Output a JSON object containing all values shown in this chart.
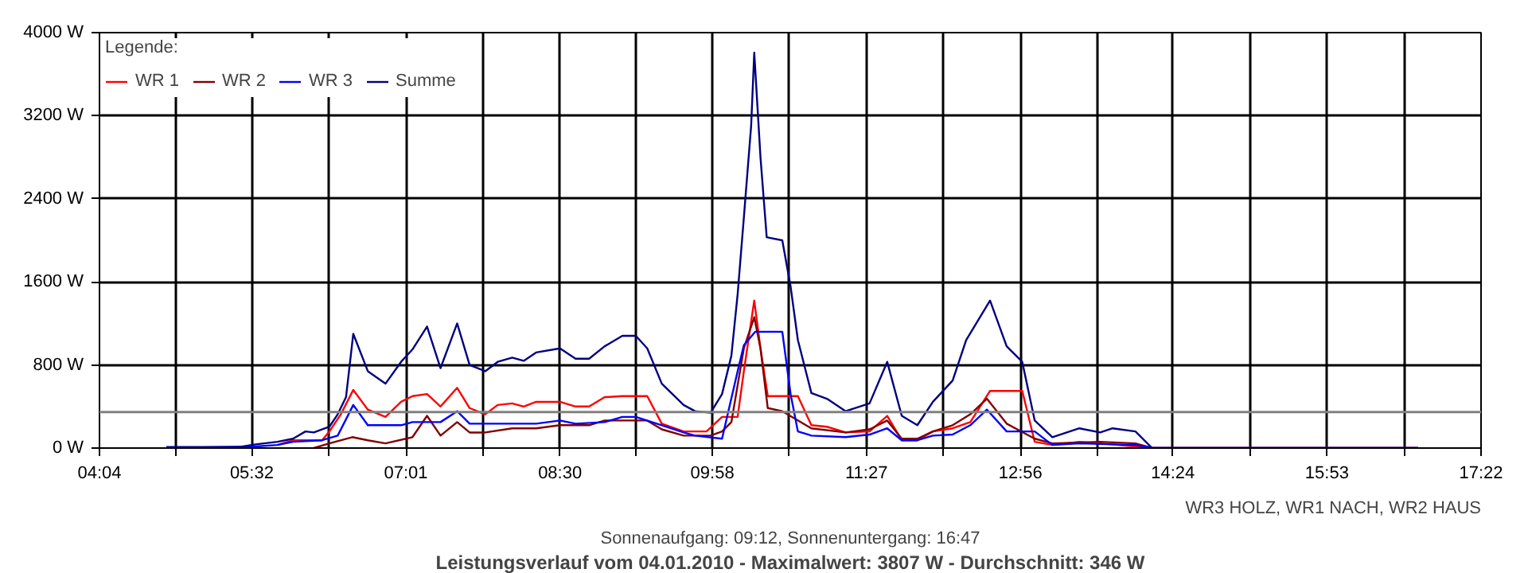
{
  "chart_data": {
    "type": "line",
    "title": "Leistungsverlauf vom 04.01.2010 - Maximalwert: 3807 W - Durchschnitt: 346 W",
    "subtitle": "Sonnenaufgang: 09:12, Sonnenuntergang: 16:47",
    "legend_title": "Legende:",
    "annotations": [
      "WR3 HOLZ, WR1 NACH, WR2 HAUS"
    ],
    "xlim": [
      4.0667,
      17.3667
    ],
    "xticks": [
      {
        "value": 4.0667,
        "label": "04:04"
      },
      {
        "value": 4.8,
        "label": null
      },
      {
        "value": 5.5333,
        "label": "05:32"
      },
      {
        "value": 6.275,
        "label": null
      },
      {
        "value": 7.0167,
        "label": "07:01"
      },
      {
        "value": 7.7583,
        "label": null
      },
      {
        "value": 8.5,
        "label": "08:30"
      },
      {
        "value": 9.2333,
        "label": null
      },
      {
        "value": 9.9667,
        "label": "09:58"
      },
      {
        "value": 10.7083,
        "label": null
      },
      {
        "value": 11.45,
        "label": "11:27"
      },
      {
        "value": 12.1917,
        "label": null
      },
      {
        "value": 12.9333,
        "label": "12:56"
      },
      {
        "value": 13.6667,
        "label": null
      },
      {
        "value": 14.4,
        "label": "14:24"
      },
      {
        "value": 15.1417,
        "label": null
      },
      {
        "value": 15.8833,
        "label": "15:53"
      },
      {
        "value": 16.625,
        "label": null
      },
      {
        "value": 17.3667,
        "label": "17:22"
      }
    ],
    "ylim": [
      0,
      4000
    ],
    "yticks": [
      {
        "value": 0,
        "label": "0 W"
      },
      {
        "value": 800,
        "label": "800 W"
      },
      {
        "value": 1600,
        "label": "1600 W"
      },
      {
        "value": 2400,
        "label": "2400 W"
      },
      {
        "value": 3200,
        "label": "3200 W"
      },
      {
        "value": 4000,
        "label": "4000 W"
      }
    ],
    "grid": true,
    "legend": "top left",
    "line_style": "solid",
    "ref_lines": [
      {
        "axis": "y",
        "value": 346,
        "label": null,
        "color": "#808080"
      }
    ],
    "series": [
      {
        "name": "WR 1",
        "color": "#ff0000",
        "x": [
          5.78,
          5.93,
          6.21,
          6.28,
          6.39,
          6.51,
          6.65,
          6.82,
          6.97,
          7.08,
          7.22,
          7.35,
          7.51,
          7.63,
          7.78,
          7.9,
          8.04,
          8.15,
          8.27,
          8.5,
          8.65,
          8.78,
          8.93,
          9.1,
          9.34,
          9.48,
          9.69,
          9.91,
          10.06,
          10.21,
          10.27,
          10.37,
          10.43,
          10.5,
          10.79,
          10.92,
          11.07,
          11.25,
          11.48,
          11.65,
          11.79,
          11.94,
          12.09,
          12.28,
          12.45,
          12.64,
          12.95,
          13.07,
          13.24,
          13.5,
          13.7,
          14.2,
          16.76
        ],
        "values": [
          30,
          75,
          75,
          160,
          325,
          560,
          370,
          300,
          445,
          500,
          520,
          400,
          580,
          385,
          325,
          415,
          430,
          400,
          445,
          445,
          400,
          400,
          490,
          500,
          500,
          235,
          160,
          160,
          300,
          300,
          740,
          1420,
          960,
          500,
          500,
          220,
          205,
          150,
          160,
          310,
          75,
          75,
          160,
          190,
          250,
          550,
          550,
          60,
          30,
          60,
          45,
          0,
          0
        ]
      },
      {
        "name": "WR 2",
        "color": "#800000",
        "x": [
          6.13,
          6.28,
          6.5,
          6.65,
          6.82,
          7.08,
          7.22,
          7.35,
          7.51,
          7.63,
          7.78,
          8.04,
          8.27,
          8.5,
          8.78,
          8.93,
          9.34,
          9.48,
          9.69,
          9.95,
          10.06,
          10.15,
          10.27,
          10.37,
          10.43,
          10.5,
          10.64,
          10.92,
          11.25,
          11.48,
          11.65,
          11.79,
          11.94,
          12.09,
          12.28,
          12.45,
          12.61,
          12.8,
          13.07,
          13.24,
          13.7,
          14.04,
          14.2,
          16.76
        ],
        "values": [
          0,
          45,
          105,
          75,
          45,
          105,
          310,
          120,
          250,
          150,
          150,
          190,
          190,
          220,
          220,
          265,
          265,
          180,
          120,
          120,
          160,
          250,
          960,
          1260,
          960,
          385,
          355,
          190,
          150,
          180,
          265,
          90,
          90,
          160,
          220,
          325,
          475,
          235,
          90,
          45,
          60,
          45,
          0,
          0
        ]
      },
      {
        "name": "WR 3",
        "color": "#0000ff",
        "x": [
          4.71,
          5.57,
          5.78,
          5.93,
          6.21,
          6.36,
          6.51,
          6.65,
          6.97,
          7.08,
          7.35,
          7.51,
          7.63,
          7.78,
          8.27,
          8.5,
          8.65,
          8.93,
          9.1,
          9.23,
          9.48,
          9.69,
          9.8,
          10.06,
          10.21,
          10.27,
          10.38,
          10.64,
          10.72,
          10.79,
          10.92,
          11.25,
          11.48,
          11.65,
          11.79,
          11.94,
          12.09,
          12.28,
          12.45,
          12.61,
          12.8,
          13.07,
          13.24,
          13.5,
          14.04,
          14.2,
          16.76
        ],
        "values": [
          0,
          15,
          30,
          60,
          75,
          120,
          415,
          220,
          220,
          250,
          250,
          355,
          235,
          235,
          235,
          265,
          235,
          250,
          300,
          300,
          220,
          150,
          120,
          90,
          740,
          990,
          1120,
          1120,
          520,
          160,
          120,
          105,
          130,
          190,
          75,
          75,
          120,
          130,
          220,
          370,
          160,
          160,
          30,
          45,
          30,
          0,
          0
        ]
      },
      {
        "name": "Summe",
        "color": "#000080",
        "x": [
          4.71,
          5.41,
          5.57,
          5.78,
          5.93,
          6.05,
          6.13,
          6.28,
          6.36,
          6.44,
          6.51,
          6.65,
          6.82,
          6.97,
          7.08,
          7.22,
          7.35,
          7.51,
          7.63,
          7.78,
          7.9,
          8.04,
          8.15,
          8.27,
          8.5,
          8.65,
          8.78,
          8.93,
          9.1,
          9.23,
          9.34,
          9.48,
          9.69,
          9.8,
          9.95,
          10.06,
          10.15,
          10.21,
          10.27,
          10.34,
          10.37,
          10.43,
          10.49,
          10.64,
          10.72,
          10.79,
          10.92,
          11.07,
          11.25,
          11.48,
          11.65,
          11.79,
          11.94,
          12.09,
          12.28,
          12.41,
          12.64,
          12.8,
          12.95,
          13.07,
          13.24,
          13.5,
          13.7,
          13.82,
          14.04,
          14.2,
          16.76
        ],
        "values": [
          10,
          10,
          35,
          60,
          90,
          160,
          150,
          205,
          325,
          490,
          1100,
          740,
          620,
          830,
          950,
          1170,
          770,
          1200,
          800,
          740,
          830,
          870,
          840,
          920,
          960,
          860,
          860,
          980,
          1080,
          1080,
          960,
          620,
          415,
          355,
          340,
          520,
          890,
          1480,
          2220,
          3100,
          3807,
          2800,
          2030,
          2000,
          1555,
          1040,
          530,
          475,
          355,
          430,
          830,
          310,
          220,
          445,
          650,
          1040,
          1420,
          980,
          830,
          265,
          105,
          190,
          150,
          190,
          160,
          0,
          0
        ]
      }
    ]
  }
}
